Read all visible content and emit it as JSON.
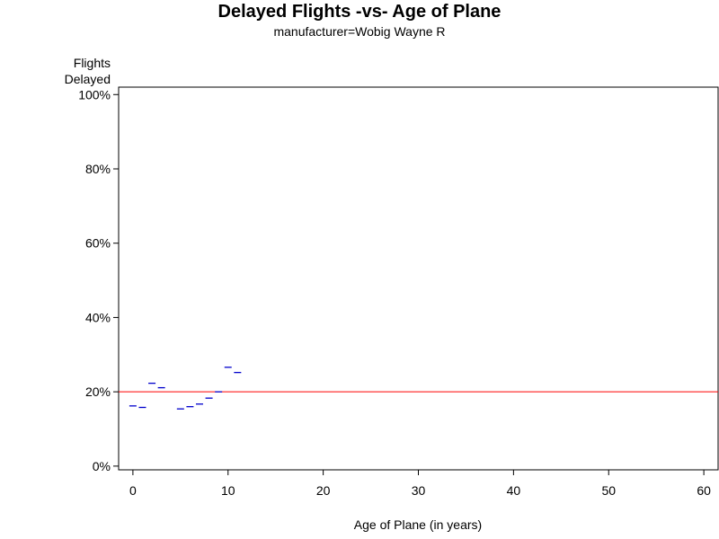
{
  "chart_data": {
    "type": "scatter",
    "title": "Delayed Flights -vs- Age of Plane",
    "subtitle": "manufacturer=Wobig Wayne R",
    "ylabel_line1": "Flights",
    "ylabel_line2": "Delayed",
    "xlabel": "Age of Plane (in years)",
    "xlim": [
      -1.5,
      61.5
    ],
    "ylim": [
      -1,
      102
    ],
    "xticks": [
      0,
      10,
      20,
      30,
      40,
      50,
      60
    ],
    "xtick_labels": [
      "0",
      "10",
      "20",
      "30",
      "40",
      "50",
      "60"
    ],
    "yticks": [
      0,
      20,
      40,
      60,
      80,
      100
    ],
    "ytick_labels": [
      "0%",
      "20%",
      "40%",
      "60%",
      "80%",
      "100%"
    ],
    "reference_line": {
      "y": 20,
      "color": "#ff0000"
    },
    "marker_color": "#0000cc",
    "marker_shape": "dash",
    "points": [
      {
        "x": 0,
        "y": 16.2
      },
      {
        "x": 1,
        "y": 15.8
      },
      {
        "x": 2,
        "y": 22.3
      },
      {
        "x": 3,
        "y": 21.1
      },
      {
        "x": 5,
        "y": 15.4
      },
      {
        "x": 6,
        "y": 16.0
      },
      {
        "x": 7,
        "y": 16.7
      },
      {
        "x": 8,
        "y": 18.3
      },
      {
        "x": 9,
        "y": 20.0
      },
      {
        "x": 10,
        "y": 26.6
      },
      {
        "x": 11,
        "y": 25.2
      }
    ]
  }
}
